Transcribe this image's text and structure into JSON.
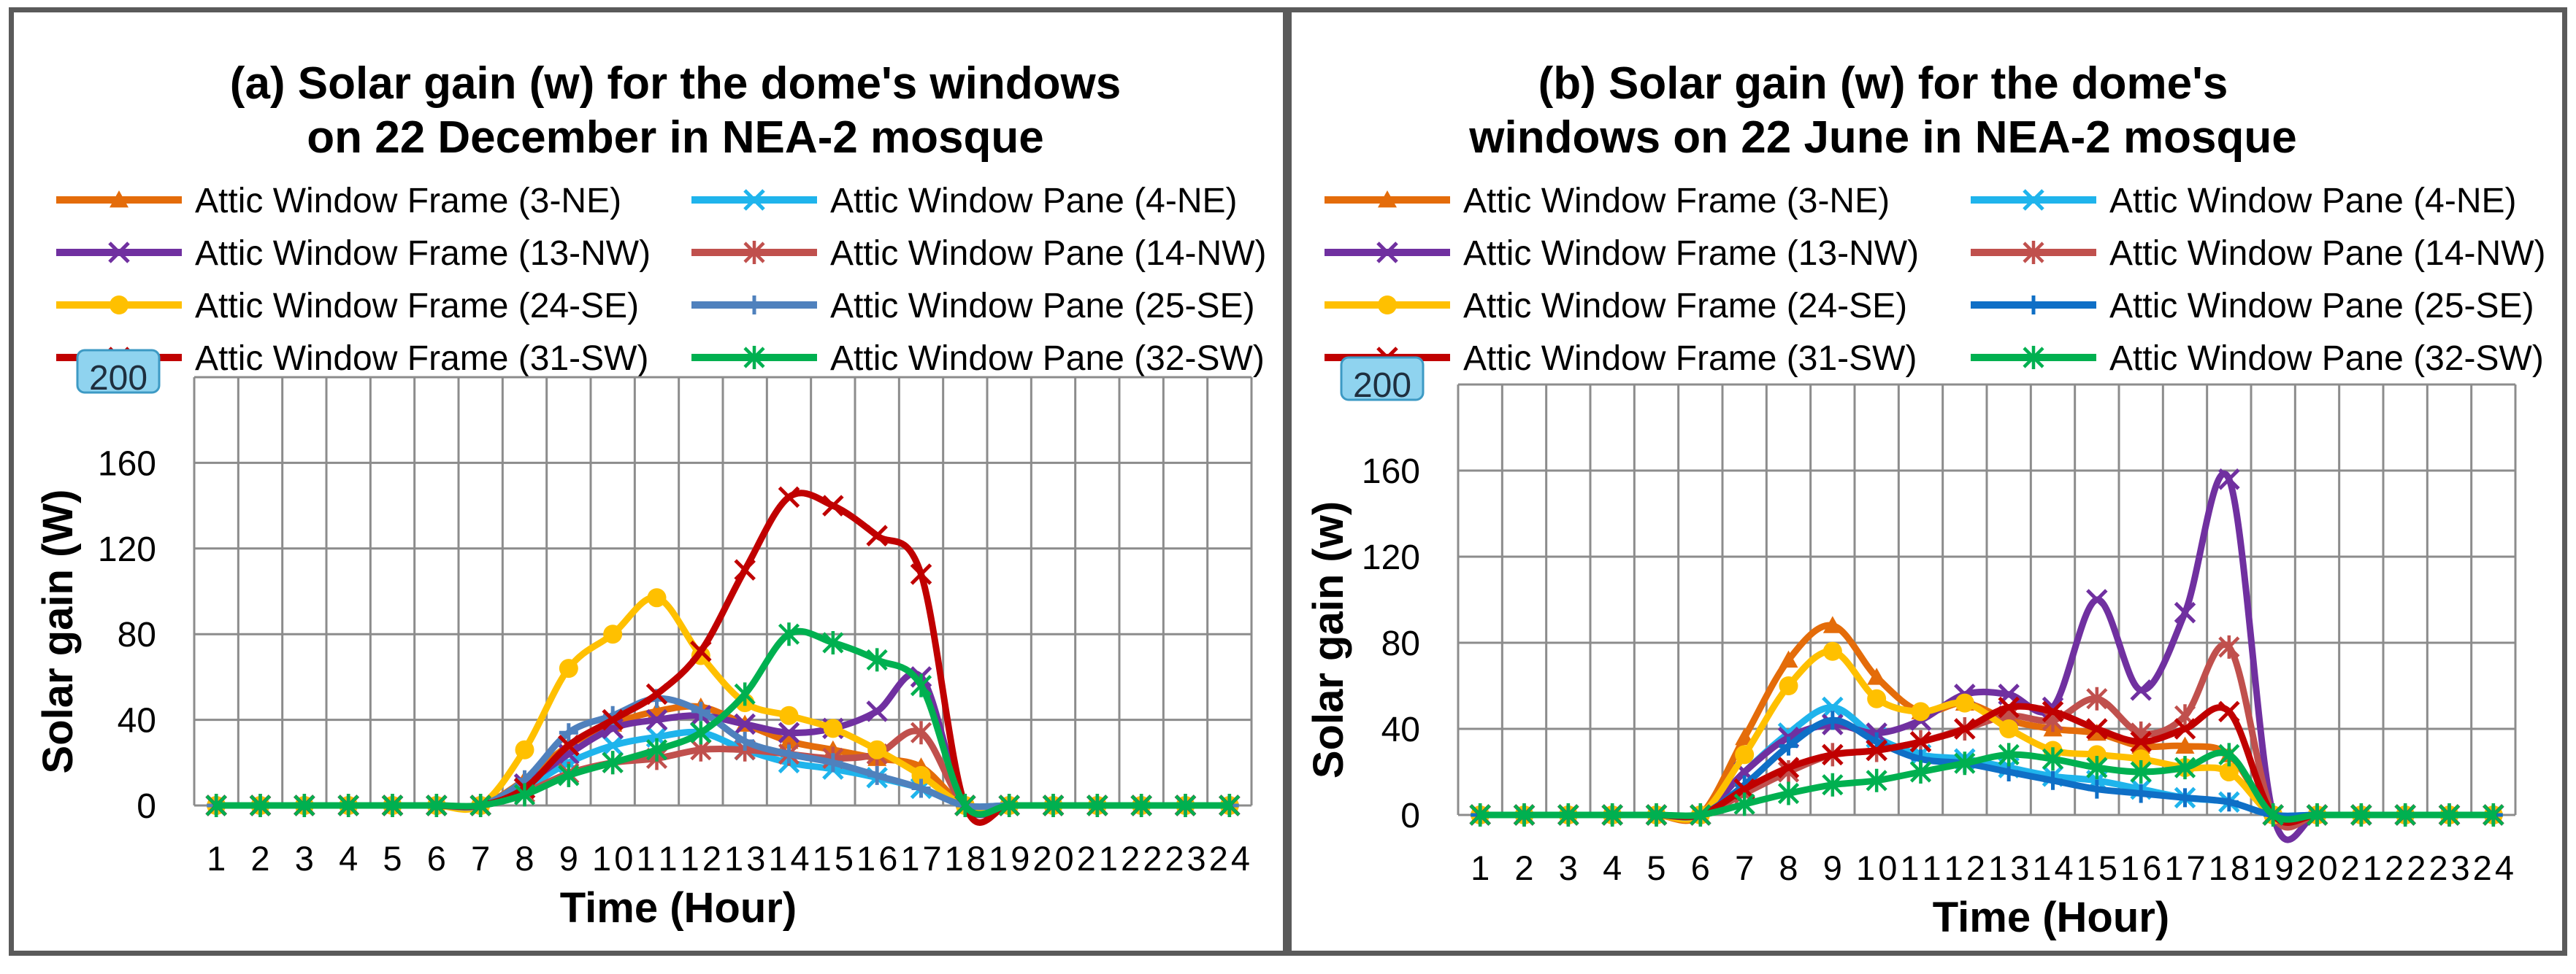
{
  "chart_data": [
    {
      "type": "line",
      "title_lines": [
        "(a) Solar gain (w) for the dome's windows",
        "on 22 December in NEA-2 mosque"
      ],
      "xlabel": "Time (Hour)",
      "ylabel": "Solar gain (W)",
      "x": [
        "1",
        "2",
        "3",
        "4",
        "5",
        "6",
        "7",
        "8",
        "9",
        "10",
        "11",
        "12",
        "13",
        "14",
        "15",
        "16",
        "17",
        "18",
        "19",
        "20",
        "21",
        "22",
        "23",
        "24"
      ],
      "ylim": [
        0,
        200
      ],
      "yticks": [
        "0",
        "40",
        "80",
        "120",
        "160",
        "200"
      ],
      "grid": true,
      "legend_position": "top",
      "series": [
        {
          "name": "Attic Window Frame (3-NE)",
          "color": "#E46C0A",
          "marker": "triangle",
          "values": [
            0,
            0,
            0,
            0,
            0,
            0,
            0,
            12,
            28,
            38,
            44,
            46,
            38,
            30,
            26,
            22,
            18,
            0,
            0,
            0,
            0,
            0,
            0,
            0
          ]
        },
        {
          "name": "Attic Window Pane (4-NE)",
          "color": "#1FB4EC",
          "marker": "x",
          "values": [
            0,
            0,
            0,
            0,
            0,
            0,
            0,
            8,
            20,
            28,
            32,
            34,
            26,
            20,
            17,
            13,
            8,
            0,
            0,
            0,
            0,
            0,
            0,
            0
          ]
        },
        {
          "name": "Attic Window Frame (13-NW)",
          "color": "#7030A0",
          "marker": "x",
          "values": [
            0,
            0,
            0,
            0,
            0,
            0,
            0,
            10,
            24,
            36,
            40,
            42,
            38,
            34,
            36,
            44,
            60,
            0,
            0,
            0,
            0,
            0,
            0,
            0
          ]
        },
        {
          "name": "Attic Window Pane (14-NW)",
          "color": "#C0504D",
          "marker": "star",
          "values": [
            0,
            0,
            0,
            0,
            0,
            0,
            0,
            6,
            15,
            20,
            22,
            26,
            26,
            24,
            22,
            24,
            34,
            0,
            0,
            0,
            0,
            0,
            0,
            0
          ]
        },
        {
          "name": "Attic Window Frame (24-SE)",
          "color": "#FFC000",
          "marker": "circle",
          "values": [
            0,
            0,
            0,
            0,
            0,
            0,
            0,
            26,
            64,
            80,
            97,
            70,
            48,
            42,
            36,
            26,
            14,
            0,
            0,
            0,
            0,
            0,
            0,
            0
          ]
        },
        {
          "name": "Attic Window Pane (25-SE)",
          "color": "#4F81BD",
          "marker": "plus",
          "values": [
            0,
            0,
            0,
            0,
            0,
            0,
            0,
            12,
            34,
            42,
            50,
            44,
            30,
            24,
            20,
            14,
            8,
            0,
            0,
            0,
            0,
            0,
            0,
            0
          ]
        },
        {
          "name": "Attic Window Frame (31-SW)",
          "color": "#C00000",
          "marker": "x",
          "values": [
            0,
            0,
            0,
            0,
            0,
            0,
            0,
            8,
            28,
            40,
            52,
            72,
            110,
            144,
            140,
            126,
            108,
            0,
            0,
            0,
            0,
            0,
            0,
            0
          ]
        },
        {
          "name": "Attic Window Pane (32-SW)",
          "color": "#00B050",
          "marker": "star",
          "values": [
            0,
            0,
            0,
            0,
            0,
            0,
            0,
            5,
            14,
            20,
            26,
            34,
            52,
            80,
            76,
            68,
            56,
            0,
            0,
            0,
            0,
            0,
            0,
            0
          ]
        }
      ]
    },
    {
      "type": "line",
      "title_lines": [
        "(b) Solar gain (w) for the dome's",
        "windows on 22 June in NEA-2 mosque"
      ],
      "xlabel": "Time (Hour)",
      "ylabel": "Solar gain (w)",
      "x": [
        "1",
        "2",
        "3",
        "4",
        "5",
        "6",
        "7",
        "8",
        "9",
        "10",
        "11",
        "12",
        "13",
        "14",
        "15",
        "16",
        "17",
        "18",
        "19",
        "20",
        "21",
        "22",
        "23",
        "24"
      ],
      "ylim": [
        0,
        200
      ],
      "yticks": [
        "0",
        "40",
        "80",
        "120",
        "160",
        "200"
      ],
      "grid": true,
      "legend_position": "top",
      "series": [
        {
          "name": "Attic Window Frame (3-NE)",
          "color": "#E46C0A",
          "marker": "triangle",
          "values": [
            0,
            0,
            0,
            0,
            0,
            0,
            36,
            72,
            88,
            64,
            48,
            52,
            44,
            40,
            38,
            32,
            32,
            28,
            0,
            0,
            0,
            0,
            0,
            0
          ]
        },
        {
          "name": "Attic Window Pane (4-NE)",
          "color": "#1FB4EC",
          "marker": "x",
          "values": [
            0,
            0,
            0,
            0,
            0,
            0,
            20,
            38,
            50,
            36,
            28,
            26,
            22,
            18,
            16,
            12,
            8,
            6,
            0,
            0,
            0,
            0,
            0,
            0
          ]
        },
        {
          "name": "Attic Window Frame (13-NW)",
          "color": "#7030A0",
          "marker": "x",
          "values": [
            0,
            0,
            0,
            0,
            0,
            0,
            20,
            36,
            42,
            38,
            44,
            56,
            56,
            50,
            100,
            58,
            94,
            156,
            0,
            0,
            0,
            0,
            0,
            0
          ]
        },
        {
          "name": "Attic Window Pane (14-NW)",
          "color": "#C0504D",
          "marker": "star",
          "values": [
            0,
            0,
            0,
            0,
            0,
            0,
            10,
            20,
            28,
            30,
            34,
            40,
            46,
            44,
            54,
            38,
            46,
            78,
            0,
            0,
            0,
            0,
            0,
            0
          ]
        },
        {
          "name": "Attic Window Frame (24-SE)",
          "color": "#FFC000",
          "marker": "circle",
          "values": [
            0,
            0,
            0,
            0,
            0,
            0,
            28,
            60,
            76,
            54,
            48,
            52,
            40,
            30,
            28,
            26,
            22,
            20,
            0,
            0,
            0,
            0,
            0,
            0
          ]
        },
        {
          "name": "Attic Window Pane (25-SE)",
          "color": "#0F6FC6",
          "marker": "plus",
          "values": [
            0,
            0,
            0,
            0,
            0,
            0,
            14,
            32,
            44,
            34,
            26,
            24,
            20,
            16,
            12,
            10,
            8,
            6,
            0,
            0,
            0,
            0,
            0,
            0
          ]
        },
        {
          "name": "Attic Window Frame (31-SW)",
          "color": "#C00000",
          "marker": "x",
          "values": [
            0,
            0,
            0,
            0,
            0,
            0,
            12,
            22,
            28,
            30,
            34,
            40,
            50,
            48,
            40,
            34,
            40,
            48,
            0,
            0,
            0,
            0,
            0,
            0
          ]
        },
        {
          "name": "Attic Window Pane (32-SW)",
          "color": "#00B050",
          "marker": "star",
          "values": [
            0,
            0,
            0,
            0,
            0,
            0,
            5,
            10,
            14,
            16,
            20,
            24,
            28,
            26,
            22,
            20,
            22,
            28,
            0,
            0,
            0,
            0,
            0,
            0
          ]
        }
      ]
    }
  ]
}
